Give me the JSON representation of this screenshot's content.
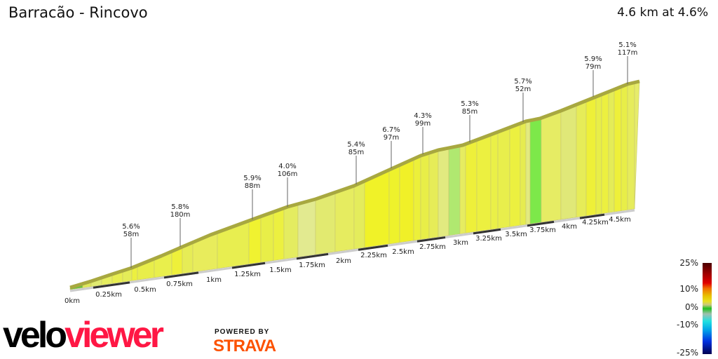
{
  "header": {
    "title": "Barracão - Rincovo",
    "summary": "4.6 km at 4.6%"
  },
  "chart_data": {
    "type": "area",
    "xlabel": "",
    "ylabel": "",
    "x_ticks": [
      "0km",
      "0.25km",
      "0.5km",
      "0.75km",
      "1km",
      "1.25km",
      "1.5km",
      "1.75km",
      "2km",
      "2.25km",
      "2.5km",
      "2.75km",
      "3km",
      "3.25km",
      "3.5km",
      "3.75km",
      "4km",
      "4.25km",
      "4.5km"
    ],
    "total_distance_km": 4.6,
    "average_gradient_pct": 4.6,
    "annotations": [
      {
        "grade": "5.6%",
        "length": "58m"
      },
      {
        "grade": "5.8%",
        "length": "180m"
      },
      {
        "grade": "5.9%",
        "length": "88m"
      },
      {
        "grade": "4.0%",
        "length": "106m"
      },
      {
        "grade": "5.4%",
        "length": "85m"
      },
      {
        "grade": "6.7%",
        "length": "97m"
      },
      {
        "grade": "4.3%",
        "length": "99m"
      },
      {
        "grade": "5.3%",
        "length": "85m"
      },
      {
        "grade": "5.7%",
        "length": "52m"
      },
      {
        "grade": "5.9%",
        "length": "79m"
      },
      {
        "grade": "5.1%",
        "length": "117m"
      }
    ],
    "legend": {
      "ticks": [
        "25%",
        "10%",
        "0%",
        "-10%",
        "-25%"
      ],
      "colors": [
        "#4a0000",
        "#e00000",
        "#f07000",
        "#e8e020",
        "#20c020",
        "#20e0e0",
        "#0030e0",
        "#000050"
      ]
    }
  },
  "branding": {
    "logo_a": "velo",
    "logo_b": "viewer",
    "powered": "POWERED BY",
    "strava": "STRAVA"
  }
}
